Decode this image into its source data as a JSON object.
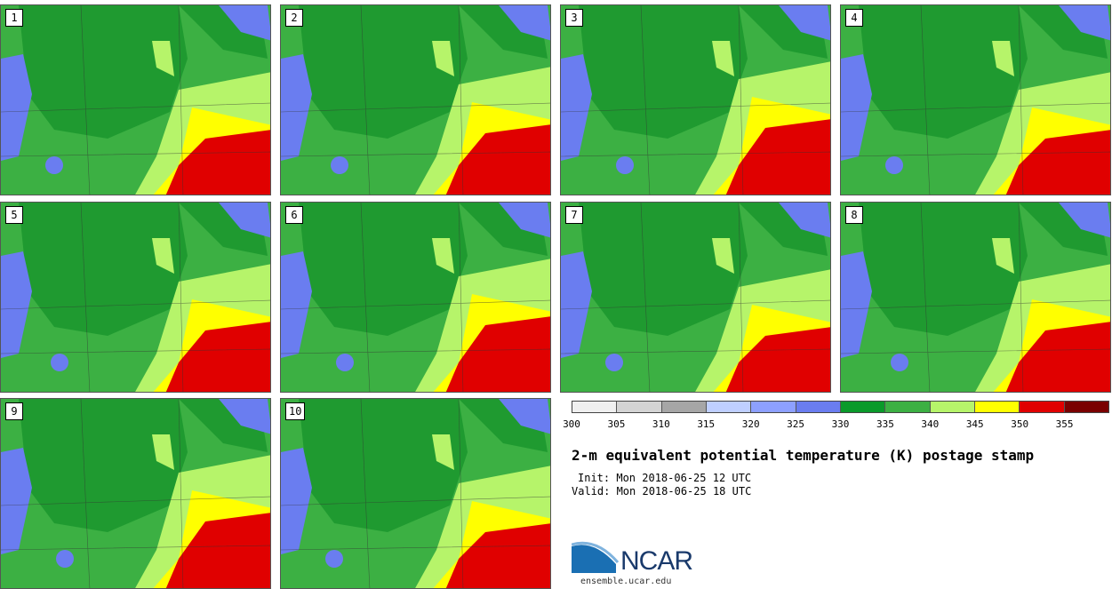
{
  "panels": [
    {
      "label": "1"
    },
    {
      "label": "2"
    },
    {
      "label": "3"
    },
    {
      "label": "4"
    },
    {
      "label": "5"
    },
    {
      "label": "6"
    },
    {
      "label": "7"
    },
    {
      "label": "8"
    },
    {
      "label": "9"
    },
    {
      "label": "10"
    }
  ],
  "colorbar": {
    "colors": [
      "#f0f0f0",
      "#d4d4d4",
      "#a6a6a6",
      "#bfcfff",
      "#8da0ff",
      "#6a7df0",
      "#0a9a2a",
      "#3cb043",
      "#b6f46a",
      "#ffff00",
      "#e00000",
      "#7a0000"
    ],
    "ticks": [
      "300",
      "305",
      "310",
      "315",
      "320",
      "325",
      "330",
      "335",
      "340",
      "345",
      "350",
      "355"
    ]
  },
  "title": "2-m equivalent potential temperature (K) postage stamp",
  "init": "Init: Mon 2018-06-25 12 UTC",
  "valid": "Valid: Mon 2018-06-25 18 UTC",
  "logo": {
    "text": "NCAR",
    "url": "ensemble.ucar.edu"
  },
  "map_colors": {
    "dark_green": "#1f9a30",
    "green": "#3cb043",
    "light_green": "#b6f46a",
    "yellow": "#ffff00",
    "red": "#e00000",
    "blue": "#6a7df0",
    "light_blue": "#8da0ff"
  }
}
